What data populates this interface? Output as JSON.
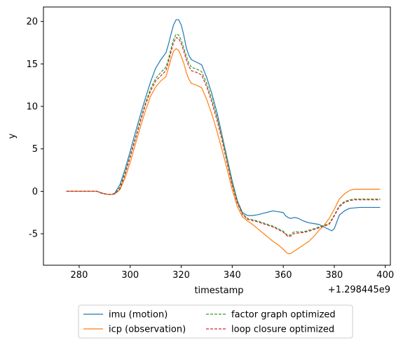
{
  "chart_data": {
    "type": "line",
    "xlabel": "timestamp",
    "ylabel": "y",
    "offset_text": "+1.298445e9",
    "xlim": [
      266,
      402
    ],
    "ylim": [
      -8.7,
      21.7
    ],
    "xticks": [
      280,
      300,
      320,
      340,
      360,
      380,
      400
    ],
    "yticks": [
      -5,
      0,
      5,
      10,
      15,
      20
    ],
    "grid": false,
    "legend_position": "below",
    "series": [
      {
        "name": "imu (motion)",
        "color": "#1f77b4",
        "style": "solid",
        "x": [
          275,
          280,
          284,
          287,
          289,
          291,
          293,
          294,
          296,
          298,
          300,
          302,
          304,
          306,
          308,
          310,
          312,
          314,
          315,
          316,
          317,
          318,
          319,
          320,
          321,
          322,
          323,
          324,
          326,
          328,
          330,
          332,
          334,
          336,
          338,
          340,
          342,
          344,
          346,
          348,
          350,
          352,
          354,
          356,
          358,
          360,
          361,
          362,
          363,
          364,
          365,
          366,
          368,
          370,
          372,
          374,
          376,
          378,
          379,
          380,
          381,
          382,
          384,
          386,
          388,
          390,
          395,
          398
        ],
        "y": [
          0,
          0,
          0,
          0,
          -0.2,
          -0.35,
          -0.35,
          -0.2,
          0.8,
          2.6,
          4.7,
          6.9,
          9.0,
          11.0,
          12.9,
          14.5,
          15.5,
          16.3,
          17.3,
          18.5,
          19.6,
          20.2,
          20.2,
          19.6,
          18.4,
          16.9,
          16.0,
          15.5,
          15.2,
          14.9,
          13.4,
          11.5,
          9.3,
          6.6,
          3.9,
          1.2,
          -1.1,
          -2.5,
          -2.85,
          -2.85,
          -2.75,
          -2.6,
          -2.45,
          -2.3,
          -2.4,
          -2.5,
          -2.9,
          -3.1,
          -3.2,
          -3.1,
          -3.1,
          -3.2,
          -3.5,
          -3.7,
          -3.8,
          -3.9,
          -4.2,
          -4.5,
          -4.65,
          -4.4,
          -3.6,
          -2.8,
          -2.3,
          -2.0,
          -1.95,
          -1.9,
          -1.9,
          -1.9
        ]
      },
      {
        "name": "icp (observation)",
        "color": "#ff7f0e",
        "style": "solid",
        "x": [
          275,
          280,
          284,
          287,
          289,
          291,
          293,
          294,
          296,
          298,
          300,
          302,
          304,
          306,
          308,
          310,
          312,
          314,
          315,
          316,
          317,
          318,
          319,
          320,
          321,
          322,
          323,
          324,
          326,
          328,
          330,
          332,
          334,
          336,
          338,
          340,
          342,
          344,
          346,
          348,
          350,
          352,
          354,
          356,
          358,
          360,
          361,
          362,
          363,
          364,
          366,
          368,
          370,
          372,
          374,
          376,
          378,
          380,
          382,
          384,
          386,
          387,
          388,
          390,
          394,
          398
        ],
        "y": [
          0,
          0,
          0,
          0,
          -0.25,
          -0.35,
          -0.35,
          -0.3,
          0.2,
          1.6,
          3.4,
          5.5,
          7.6,
          9.5,
          11.2,
          12.3,
          13.0,
          13.5,
          14.5,
          15.6,
          16.5,
          16.8,
          16.6,
          15.9,
          15.1,
          14.0,
          13.2,
          12.7,
          12.5,
          12.2,
          10.8,
          9.1,
          7.1,
          4.9,
          2.6,
          0.2,
          -1.8,
          -3.0,
          -3.5,
          -3.9,
          -4.4,
          -4.9,
          -5.4,
          -5.9,
          -6.3,
          -6.8,
          -7.15,
          -7.35,
          -7.3,
          -7.1,
          -6.7,
          -6.3,
          -5.9,
          -5.3,
          -4.6,
          -4.0,
          -3.2,
          -2.1,
          -0.9,
          -0.3,
          0.1,
          0.2,
          0.25,
          0.25,
          0.25,
          0.25
        ]
      },
      {
        "name": "factor graph optimized",
        "color": "#2ca02c",
        "style": "dashed",
        "x": [
          275,
          280,
          284,
          287,
          289,
          291,
          293,
          294,
          296,
          298,
          300,
          302,
          304,
          306,
          308,
          310,
          312,
          314,
          315,
          316,
          317,
          318,
          319,
          320,
          321,
          322,
          323,
          324,
          326,
          328,
          330,
          332,
          334,
          336,
          338,
          340,
          342,
          344,
          346,
          348,
          350,
          352,
          354,
          356,
          358,
          360,
          361,
          362,
          363,
          364,
          366,
          368,
          370,
          372,
          374,
          376,
          378,
          380,
          382,
          384,
          386,
          388,
          390,
          394,
          398
        ],
        "y": [
          0,
          0,
          0,
          0,
          -0.25,
          -0.35,
          -0.35,
          -0.25,
          0.5,
          2.2,
          4.2,
          6.3,
          8.4,
          10.4,
          12.1,
          13.3,
          14.0,
          14.6,
          15.6,
          16.8,
          17.9,
          18.5,
          18.4,
          17.8,
          16.9,
          15.9,
          15.1,
          14.6,
          14.4,
          14.1,
          12.7,
          10.9,
          8.8,
          6.4,
          3.7,
          1.0,
          -1.2,
          -2.6,
          -3.2,
          -3.35,
          -3.5,
          -3.7,
          -3.9,
          -4.1,
          -4.4,
          -4.7,
          -5.0,
          -5.2,
          -5.1,
          -4.8,
          -4.75,
          -4.75,
          -4.6,
          -4.4,
          -4.2,
          -4.0,
          -3.8,
          -2.8,
          -1.7,
          -1.2,
          -1.0,
          -0.9,
          -0.9,
          -0.9,
          -0.9
        ]
      },
      {
        "name": "loop closure optimized",
        "color": "#d62728",
        "style": "dashed",
        "x": [
          275,
          280,
          284,
          287,
          289,
          291,
          293,
          294,
          296,
          298,
          300,
          302,
          304,
          306,
          308,
          310,
          312,
          314,
          315,
          316,
          317,
          318,
          319,
          320,
          321,
          322,
          323,
          324,
          326,
          328,
          330,
          332,
          334,
          336,
          338,
          340,
          342,
          344,
          346,
          348,
          350,
          352,
          354,
          356,
          358,
          360,
          361,
          362,
          363,
          364,
          366,
          368,
          370,
          372,
          374,
          376,
          378,
          380,
          382,
          384,
          386,
          388,
          390,
          394,
          398
        ],
        "y": [
          0,
          0,
          0,
          0,
          -0.25,
          -0.35,
          -0.35,
          -0.3,
          0.3,
          2.0,
          4.0,
          6.1,
          8.2,
          10.2,
          11.8,
          13.0,
          13.6,
          14.2,
          15.2,
          16.4,
          17.5,
          18.1,
          18.0,
          17.4,
          16.5,
          15.5,
          14.7,
          14.2,
          14.0,
          13.7,
          12.3,
          10.5,
          8.4,
          6.0,
          3.3,
          0.7,
          -1.4,
          -2.7,
          -3.3,
          -3.45,
          -3.6,
          -3.8,
          -4.0,
          -4.2,
          -4.5,
          -4.8,
          -5.1,
          -5.35,
          -5.25,
          -5.0,
          -4.9,
          -4.85,
          -4.7,
          -4.5,
          -4.3,
          -4.1,
          -3.9,
          -2.9,
          -1.8,
          -1.3,
          -1.1,
          -1.0,
          -1.0,
          -1.0,
          -1.0
        ]
      }
    ]
  }
}
